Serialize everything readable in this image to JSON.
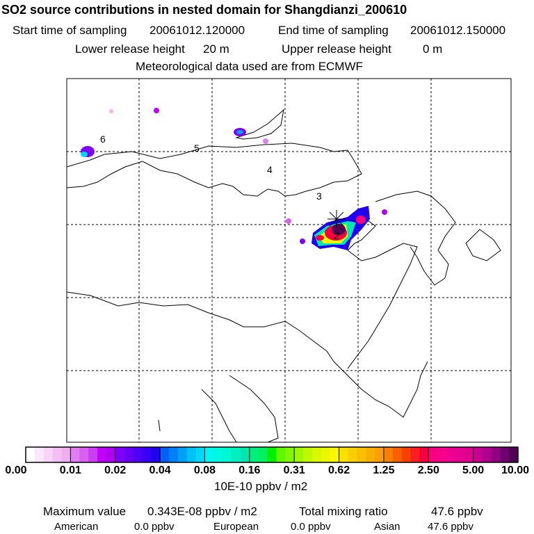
{
  "header": {
    "title": "SO2 source contributions in nested domain for Shangdianzi_200610",
    "start_label": "Start time of sampling",
    "start_value": "20061012.120000",
    "end_label": "End time of sampling",
    "end_value": "20061012.150000",
    "lower_label": "Lower release height",
    "lower_value": "20 m",
    "upper_label": "Upper release height",
    "upper_value": "0 m",
    "met": "Meteorological data used are from ECMWF"
  },
  "chart_data": {
    "type": "heatmap",
    "title": "SO2 source contributions in nested domain for Shangdianzi_200610",
    "contour_labels": [
      "6",
      "5",
      "4",
      "3",
      "2"
    ],
    "colorbar": {
      "ticks": [
        "0.00",
        "0.01",
        "0.02",
        "0.04",
        "0.08",
        "0.16",
        "0.31",
        "0.62",
        "1.25",
        "2.50",
        "5.00",
        "10.00"
      ],
      "unit": "10E-10 ppbv / m2",
      "colors": [
        [
          "#ffffff",
          "#fce8fc",
          "#f8d4f8",
          "#f4c0f4",
          "#f0b0f0"
        ],
        [
          "#e080f0",
          "#d860f0",
          "#c840f0",
          "#c000f8",
          "#b000f0"
        ],
        [
          "#8000f8",
          "#6800f8",
          "#5000f8",
          "#3800f8",
          "#2000f0"
        ],
        [
          "#0060f8",
          "#0080f8",
          "#00a0f8",
          "#00c0f8",
          "#00d8f8"
        ],
        [
          "#00f8f0",
          "#00f8e0",
          "#00f8d0",
          "#00f0c0",
          "#00e8b0"
        ],
        [
          "#00f080",
          "#00f060",
          "#00f000",
          "#60f800",
          "#80f800"
        ],
        [
          "#a0f800",
          "#c0f800",
          "#d8f800",
          "#e8f800",
          "#f8f800"
        ],
        [
          "#f8e000",
          "#f8d000",
          "#f8c000",
          "#f8b000",
          "#f8a000"
        ],
        [
          "#f88000",
          "#f86000",
          "#f84000",
          "#f82020",
          "#f80040"
        ],
        [
          "#f80080",
          "#f80088",
          "#f00090",
          "#e80090",
          "#e00090"
        ],
        [
          "#c80090",
          "#b00090",
          "#900080",
          "#700070",
          "#500050"
        ]
      ]
    },
    "plume": [
      {
        "lon_px": 0,
        "label": "Shangdianzi source"
      }
    ]
  },
  "summary": {
    "max_label": "Maximum value",
    "max_value": "0.343E-08 ppbv / m2",
    "total_label": "Total mixing ratio",
    "total_value": "47.6 ppbv",
    "american_label": "American",
    "american_value": "0.0 ppbv",
    "european_label": "European",
    "european_value": "0.0 ppbv",
    "asian_label": "Asian",
    "asian_value": "47.6 ppbv"
  }
}
